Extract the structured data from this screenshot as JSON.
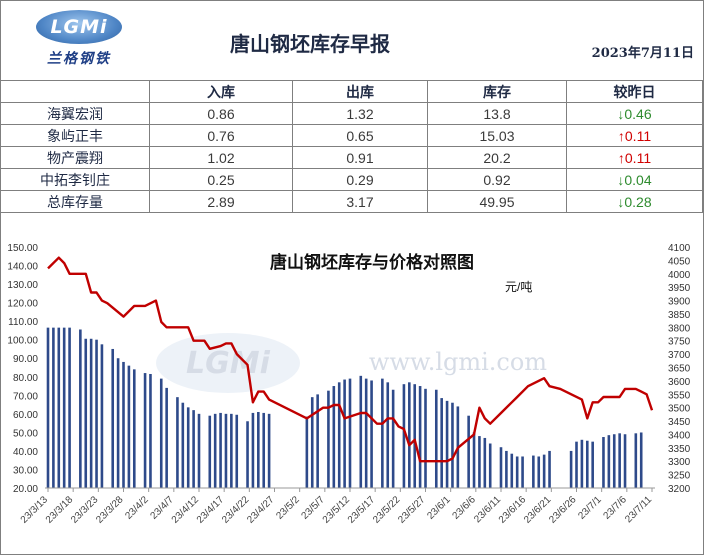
{
  "header": {
    "logo_text": "LGMi",
    "logo_cn": "兰格钢铁",
    "title": "唐山钢坯库存早报",
    "date": "2023年7月11日"
  },
  "table": {
    "columns": [
      "",
      "入库",
      "出库",
      "库存",
      "较昨日"
    ],
    "rows": [
      {
        "name": "海翼宏润",
        "in": "0.86",
        "out": "1.32",
        "stock": "13.8",
        "change": "0.46",
        "dir": "down"
      },
      {
        "name": "象屿正丰",
        "in": "0.76",
        "out": "0.65",
        "stock": "15.03",
        "change": "0.11",
        "dir": "up"
      },
      {
        "name": "物产震翔",
        "in": "1.02",
        "out": "0.91",
        "stock": "20.2",
        "change": "0.11",
        "dir": "up"
      },
      {
        "name": "中拓李钊庄",
        "in": "0.25",
        "out": "0.29",
        "stock": "0.92",
        "change": "0.04",
        "dir": "down"
      },
      {
        "name": "总库存量",
        "in": "2.89",
        "out": "3.17",
        "stock": "49.95",
        "change": "0.28",
        "dir": "down"
      }
    ],
    "arrow_down": "↓",
    "arrow_up": "↑"
  },
  "chart_data": {
    "type": "bar+line",
    "title": "唐山钢坯库存与价格对照图",
    "unit_label": "元/吨",
    "watermark_logo": "LGMi",
    "watermark_url": "www.lgmi.com",
    "colors": {
      "bars": "#2e4a8a",
      "line": "#c00000"
    },
    "y_left": {
      "min": 20,
      "max": 150,
      "step": 10
    },
    "y_right": {
      "min": 3200,
      "max": 4100,
      "step": 50
    },
    "x_tick_labels": [
      "23/3/13",
      "23/3/18",
      "23/3/23",
      "23/3/28",
      "23/4/2",
      "23/4/7",
      "23/4/12",
      "23/4/17",
      "23/4/22",
      "23/4/27",
      "23/5/2",
      "23/5/7",
      "23/5/12",
      "23/5/17",
      "23/5/22",
      "23/5/27",
      "23/6/1",
      "23/6/6",
      "23/6/11",
      "23/6/16",
      "23/6/21",
      "23/6/26",
      "23/7/1",
      "23/7/6",
      "23/7/11"
    ],
    "x_days": 121,
    "inventory_series": {
      "name": "库存",
      "points": [
        [
          0,
          106.5
        ],
        [
          1,
          106.5
        ],
        [
          2,
          106.5
        ],
        [
          3,
          106.5
        ],
        [
          4,
          106.5
        ],
        [
          6,
          105.5
        ],
        [
          7,
          100.5
        ],
        [
          8,
          100.5
        ],
        [
          9,
          100
        ],
        [
          10,
          97.5
        ],
        [
          12,
          95
        ],
        [
          13,
          90
        ],
        [
          14,
          88
        ],
        [
          15,
          86
        ],
        [
          16,
          84
        ],
        [
          18,
          82
        ],
        [
          19,
          81.5
        ],
        [
          21,
          79
        ],
        [
          22,
          74
        ],
        [
          24,
          69
        ],
        [
          25,
          66
        ],
        [
          26,
          63.5
        ],
        [
          27,
          62
        ],
        [
          28,
          60
        ],
        [
          30,
          59
        ],
        [
          31,
          60
        ],
        [
          32,
          60.5
        ],
        [
          33,
          60
        ],
        [
          34,
          60
        ],
        [
          35,
          59.5
        ],
        [
          37,
          56
        ],
        [
          38,
          60.5
        ],
        [
          39,
          61
        ],
        [
          40,
          60.5
        ],
        [
          41,
          60
        ],
        [
          48,
          58.5
        ],
        [
          49,
          69
        ],
        [
          50,
          70.5
        ],
        [
          52,
          72.5
        ],
        [
          53,
          75
        ],
        [
          54,
          77
        ],
        [
          55,
          78.5
        ],
        [
          56,
          79
        ],
        [
          58,
          80.5
        ],
        [
          59,
          79
        ],
        [
          60,
          78
        ],
        [
          62,
          79
        ],
        [
          63,
          77
        ],
        [
          64,
          73
        ],
        [
          66,
          76
        ],
        [
          67,
          77
        ],
        [
          68,
          76
        ],
        [
          69,
          75
        ],
        [
          70,
          73.5
        ],
        [
          72,
          73
        ],
        [
          73,
          68.5
        ],
        [
          74,
          67
        ],
        [
          75,
          66
        ],
        [
          76,
          64
        ],
        [
          78,
          59
        ],
        [
          79,
          50
        ],
        [
          80,
          48
        ],
        [
          81,
          47
        ],
        [
          82,
          44
        ],
        [
          84,
          42
        ],
        [
          85,
          40
        ],
        [
          86,
          38.5
        ],
        [
          87,
          37
        ],
        [
          88,
          37
        ],
        [
          90,
          37.5
        ],
        [
          91,
          37
        ],
        [
          92,
          38
        ],
        [
          93,
          40
        ],
        [
          97,
          40
        ],
        [
          98,
          45
        ],
        [
          99,
          46
        ],
        [
          100,
          45.5
        ],
        [
          101,
          45
        ],
        [
          103,
          47.5
        ],
        [
          104,
          48.5
        ],
        [
          105,
          49
        ],
        [
          106,
          49.5
        ],
        [
          107,
          49
        ],
        [
          109,
          49.5
        ],
        [
          110,
          49.95
        ]
      ]
    },
    "price_series": {
      "name": "价格",
      "points": [
        [
          0,
          4020
        ],
        [
          2,
          4060
        ],
        [
          3,
          4040
        ],
        [
          4,
          4000
        ],
        [
          7,
          4000
        ],
        [
          8,
          3930
        ],
        [
          9,
          3930
        ],
        [
          10,
          3900
        ],
        [
          11,
          3890
        ],
        [
          14,
          3840
        ],
        [
          16,
          3880
        ],
        [
          18,
          3880
        ],
        [
          20,
          3900
        ],
        [
          21,
          3820
        ],
        [
          22,
          3800
        ],
        [
          26,
          3800
        ],
        [
          27,
          3750
        ],
        [
          29,
          3750
        ],
        [
          30,
          3720
        ],
        [
          32,
          3730
        ],
        [
          33,
          3740
        ],
        [
          34,
          3740
        ],
        [
          35,
          3700
        ],
        [
          37,
          3660
        ],
        [
          38,
          3520
        ],
        [
          39,
          3560
        ],
        [
          40,
          3560
        ],
        [
          41,
          3530
        ],
        [
          48,
          3460
        ],
        [
          51,
          3500
        ],
        [
          52,
          3500
        ],
        [
          53,
          3510
        ],
        [
          54,
          3510
        ],
        [
          55,
          3460
        ],
        [
          58,
          3480
        ],
        [
          59,
          3480
        ],
        [
          61,
          3440
        ],
        [
          62,
          3440
        ],
        [
          63,
          3460
        ],
        [
          64,
          3460
        ],
        [
          65,
          3430
        ],
        [
          66,
          3420
        ],
        [
          67,
          3360
        ],
        [
          68,
          3380
        ],
        [
          69,
          3300
        ],
        [
          74,
          3300
        ],
        [
          75,
          3310
        ],
        [
          76,
          3350
        ],
        [
          79,
          3400
        ],
        [
          80,
          3500
        ],
        [
          81,
          3460
        ],
        [
          82,
          3440
        ],
        [
          84,
          3480
        ],
        [
          86,
          3520
        ],
        [
          87,
          3540
        ],
        [
          89,
          3580
        ],
        [
          92,
          3610
        ],
        [
          93,
          3580
        ],
        [
          95,
          3570
        ],
        [
          99,
          3530
        ],
        [
          100,
          3460
        ],
        [
          101,
          3520
        ],
        [
          102,
          3520
        ],
        [
          103,
          3540
        ],
        [
          106,
          3540
        ],
        [
          107,
          3570
        ],
        [
          108,
          3570
        ],
        [
          109,
          3570
        ],
        [
          110,
          3560
        ],
        [
          111,
          3550
        ],
        [
          112,
          3490
        ]
      ]
    }
  }
}
